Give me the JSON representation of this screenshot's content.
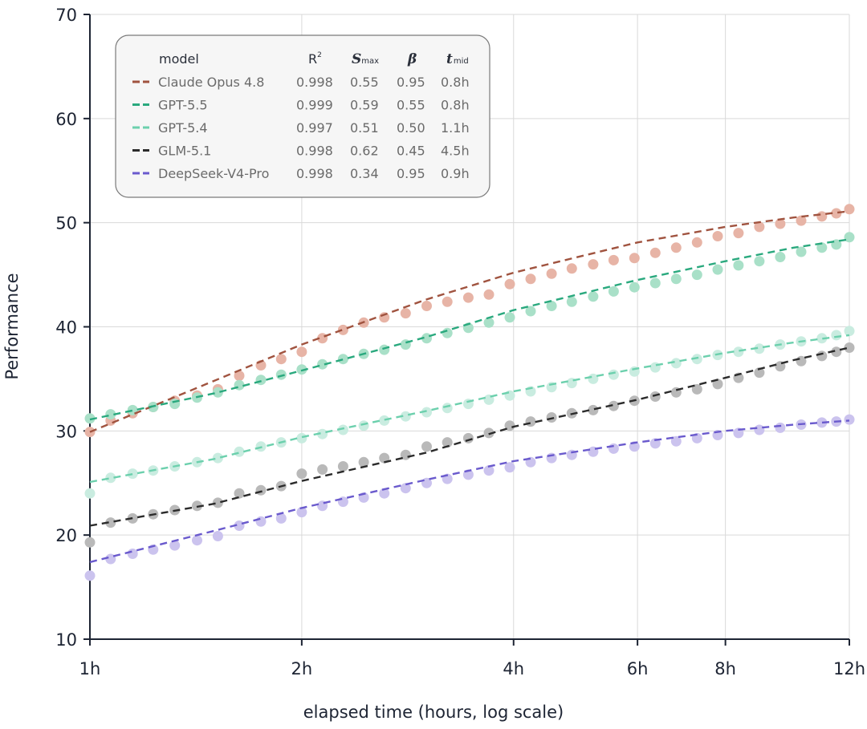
{
  "chart_data": {
    "type": "line",
    "xlabel": "elapsed time (hours, log scale)",
    "ylabel": "Performance",
    "x_scale": "log",
    "xlim": [
      1,
      12
    ],
    "ylim": [
      10,
      70
    ],
    "grid": true,
    "x_ticks": [
      {
        "value": 1,
        "label": "1h"
      },
      {
        "value": 2,
        "label": "2h"
      },
      {
        "value": 4,
        "label": "4h"
      },
      {
        "value": 6,
        "label": "6h"
      },
      {
        "value": 8,
        "label": "8h"
      },
      {
        "value": 12,
        "label": "12h"
      }
    ],
    "y_ticks": [
      10,
      20,
      30,
      40,
      50,
      60,
      70
    ],
    "legend": {
      "placement": "top-left",
      "headers": {
        "model": "model",
        "r2": "R",
        "r2_sup": "2",
        "smax": "S",
        "smax_sub": "max",
        "beta": "β",
        "tmid": "t",
        "tmid_sub": "mid"
      },
      "rows": [
        {
          "model": "Claude Opus 4.8",
          "r2": "0.998",
          "smax": "0.55",
          "beta": "0.95",
          "tmid": "0.8h"
        },
        {
          "model": "GPT-5.5",
          "r2": "0.999",
          "smax": "0.59",
          "beta": "0.55",
          "tmid": "0.8h"
        },
        {
          "model": "GPT-5.4",
          "r2": "0.997",
          "smax": "0.51",
          "beta": "0.50",
          "tmid": "1.1h"
        },
        {
          "model": "GLM-5.1",
          "r2": "0.998",
          "smax": "0.62",
          "beta": "0.45",
          "tmid": "4.5h"
        },
        {
          "model": "DeepSeek-V4-Pro",
          "r2": "0.998",
          "smax": "0.34",
          "beta": "0.95",
          "tmid": "0.9h"
        }
      ]
    },
    "series": [
      {
        "name": "Claude Opus 4.8",
        "line_color": "#a0533f",
        "dot_color": "#e7b4a6",
        "fit": [
          [
            1,
            29.9
          ],
          [
            1.25,
            32.6
          ],
          [
            1.5,
            34.8
          ],
          [
            2,
            38.3
          ],
          [
            3,
            42.6
          ],
          [
            4,
            45.2
          ],
          [
            6,
            48.1
          ],
          [
            8,
            49.6
          ],
          [
            10,
            50.5
          ],
          [
            12,
            51.1
          ]
        ],
        "points": [
          [
            1,
            29.9
          ],
          [
            1.07,
            31.0
          ],
          [
            1.15,
            31.7
          ],
          [
            1.23,
            32.3
          ],
          [
            1.32,
            32.9
          ],
          [
            1.42,
            33.4
          ],
          [
            1.52,
            34.0
          ],
          [
            1.63,
            35.3
          ],
          [
            1.75,
            36.3
          ],
          [
            1.87,
            36.9
          ],
          [
            2.0,
            37.6
          ],
          [
            2.14,
            38.9
          ],
          [
            2.29,
            39.7
          ],
          [
            2.45,
            40.4
          ],
          [
            2.62,
            40.9
          ],
          [
            2.81,
            41.3
          ],
          [
            3.01,
            42.0
          ],
          [
            3.22,
            42.4
          ],
          [
            3.45,
            42.8
          ],
          [
            3.69,
            43.1
          ],
          [
            3.95,
            44.1
          ],
          [
            4.23,
            44.6
          ],
          [
            4.53,
            45.1
          ],
          [
            4.84,
            45.6
          ],
          [
            5.19,
            46.0
          ],
          [
            5.55,
            46.4
          ],
          [
            5.94,
            46.6
          ],
          [
            6.36,
            47.1
          ],
          [
            6.81,
            47.6
          ],
          [
            7.29,
            48.1
          ],
          [
            7.8,
            48.7
          ],
          [
            8.35,
            49.0
          ],
          [
            8.94,
            49.6
          ],
          [
            9.57,
            49.9
          ],
          [
            10.25,
            50.2
          ],
          [
            10.97,
            50.6
          ],
          [
            11.5,
            50.9
          ],
          [
            12,
            51.3
          ]
        ]
      },
      {
        "name": "GPT-5.5",
        "line_color": "#2aa97e",
        "dot_color": "#a9e0c8",
        "fit": [
          [
            1,
            31.1
          ],
          [
            1.5,
            33.6
          ],
          [
            2,
            35.8
          ],
          [
            3,
            39.0
          ],
          [
            4,
            41.6
          ],
          [
            6,
            44.5
          ],
          [
            8,
            46.3
          ],
          [
            10,
            47.6
          ],
          [
            12,
            48.4
          ]
        ],
        "points": [
          [
            1,
            31.2
          ],
          [
            1.07,
            31.6
          ],
          [
            1.15,
            32.0
          ],
          [
            1.23,
            32.3
          ],
          [
            1.32,
            32.6
          ],
          [
            1.42,
            33.2
          ],
          [
            1.52,
            33.7
          ],
          [
            1.63,
            34.4
          ],
          [
            1.75,
            34.9
          ],
          [
            1.87,
            35.4
          ],
          [
            2.0,
            35.9
          ],
          [
            2.14,
            36.4
          ],
          [
            2.29,
            36.9
          ],
          [
            2.45,
            37.4
          ],
          [
            2.62,
            37.8
          ],
          [
            2.81,
            38.3
          ],
          [
            3.01,
            38.9
          ],
          [
            3.22,
            39.4
          ],
          [
            3.45,
            39.9
          ],
          [
            3.69,
            40.4
          ],
          [
            3.95,
            40.9
          ],
          [
            4.23,
            41.5
          ],
          [
            4.53,
            42.0
          ],
          [
            4.84,
            42.4
          ],
          [
            5.19,
            42.9
          ],
          [
            5.55,
            43.4
          ],
          [
            5.94,
            43.8
          ],
          [
            6.36,
            44.2
          ],
          [
            6.81,
            44.6
          ],
          [
            7.29,
            45.0
          ],
          [
            7.8,
            45.5
          ],
          [
            8.35,
            45.9
          ],
          [
            8.94,
            46.3
          ],
          [
            9.57,
            46.7
          ],
          [
            10.25,
            47.2
          ],
          [
            10.97,
            47.6
          ],
          [
            11.5,
            47.9
          ],
          [
            12,
            48.6
          ]
        ]
      },
      {
        "name": "GPT-5.4",
        "line_color": "#6cd0ad",
        "dot_color": "#c9ece0",
        "fit": [
          [
            1,
            25.1
          ],
          [
            1.5,
            27.3
          ],
          [
            2,
            29.4
          ],
          [
            3,
            31.9
          ],
          [
            4,
            33.8
          ],
          [
            6,
            36.0
          ],
          [
            8,
            37.5
          ],
          [
            10,
            38.5
          ],
          [
            12,
            39.2
          ]
        ],
        "points": [
          [
            1,
            24.0
          ],
          [
            1.07,
            25.5
          ],
          [
            1.15,
            25.9
          ],
          [
            1.23,
            26.2
          ],
          [
            1.32,
            26.6
          ],
          [
            1.42,
            27.0
          ],
          [
            1.52,
            27.4
          ],
          [
            1.63,
            28.0
          ],
          [
            1.75,
            28.5
          ],
          [
            1.87,
            28.9
          ],
          [
            2.0,
            29.3
          ],
          [
            2.14,
            29.7
          ],
          [
            2.29,
            30.1
          ],
          [
            2.45,
            30.5
          ],
          [
            2.62,
            31.0
          ],
          [
            2.81,
            31.4
          ],
          [
            3.01,
            31.8
          ],
          [
            3.22,
            32.2
          ],
          [
            3.45,
            32.6
          ],
          [
            3.69,
            33.0
          ],
          [
            3.95,
            33.4
          ],
          [
            4.23,
            33.8
          ],
          [
            4.53,
            34.2
          ],
          [
            4.84,
            34.6
          ],
          [
            5.19,
            35.0
          ],
          [
            5.55,
            35.4
          ],
          [
            5.94,
            35.7
          ],
          [
            6.36,
            36.1
          ],
          [
            6.81,
            36.5
          ],
          [
            7.29,
            36.9
          ],
          [
            7.8,
            37.3
          ],
          [
            8.35,
            37.6
          ],
          [
            8.94,
            37.9
          ],
          [
            9.57,
            38.3
          ],
          [
            10.25,
            38.6
          ],
          [
            10.97,
            38.9
          ],
          [
            11.5,
            39.2
          ],
          [
            12,
            39.6
          ]
        ]
      },
      {
        "name": "GLM-5.1",
        "line_color": "#2b2b2b",
        "dot_color": "#b9b9b9",
        "fit": [
          [
            1,
            20.9
          ],
          [
            1.5,
            23.0
          ],
          [
            2,
            25.2
          ],
          [
            3,
            27.9
          ],
          [
            4,
            30.4
          ],
          [
            6,
            33.0
          ],
          [
            8,
            35.1
          ],
          [
            10,
            36.8
          ],
          [
            12,
            38.0
          ]
        ],
        "points": [
          [
            1,
            19.3
          ],
          [
            1.07,
            21.2
          ],
          [
            1.15,
            21.6
          ],
          [
            1.23,
            22.0
          ],
          [
            1.32,
            22.4
          ],
          [
            1.42,
            22.8
          ],
          [
            1.52,
            23.1
          ],
          [
            1.63,
            24.0
          ],
          [
            1.75,
            24.3
          ],
          [
            1.87,
            24.7
          ],
          [
            2.0,
            25.9
          ],
          [
            2.14,
            26.3
          ],
          [
            2.29,
            26.6
          ],
          [
            2.45,
            27.0
          ],
          [
            2.62,
            27.4
          ],
          [
            2.81,
            27.7
          ],
          [
            3.01,
            28.5
          ],
          [
            3.22,
            28.9
          ],
          [
            3.45,
            29.3
          ],
          [
            3.69,
            29.8
          ],
          [
            3.95,
            30.5
          ],
          [
            4.23,
            30.9
          ],
          [
            4.53,
            31.3
          ],
          [
            4.84,
            31.7
          ],
          [
            5.19,
            32.0
          ],
          [
            5.55,
            32.4
          ],
          [
            5.94,
            32.9
          ],
          [
            6.36,
            33.3
          ],
          [
            6.81,
            33.7
          ],
          [
            7.29,
            34.0
          ],
          [
            7.8,
            34.5
          ],
          [
            8.35,
            35.1
          ],
          [
            8.94,
            35.6
          ],
          [
            9.57,
            36.2
          ],
          [
            10.25,
            36.7
          ],
          [
            10.97,
            37.2
          ],
          [
            11.5,
            37.6
          ],
          [
            12,
            38.0
          ]
        ]
      },
      {
        "name": "DeepSeek-V4-Pro",
        "line_color": "#6a5acd",
        "dot_color": "#cbc3ee",
        "fit": [
          [
            1,
            17.4
          ],
          [
            1.5,
            20.4
          ],
          [
            2,
            22.6
          ],
          [
            3,
            25.3
          ],
          [
            4,
            27.1
          ],
          [
            6,
            28.9
          ],
          [
            8,
            30.0
          ],
          [
            10,
            30.6
          ],
          [
            12,
            31.0
          ]
        ],
        "points": [
          [
            1,
            16.1
          ],
          [
            1.07,
            17.7
          ],
          [
            1.15,
            18.2
          ],
          [
            1.23,
            18.6
          ],
          [
            1.32,
            19.0
          ],
          [
            1.42,
            19.5
          ],
          [
            1.52,
            19.9
          ],
          [
            1.63,
            20.9
          ],
          [
            1.75,
            21.3
          ],
          [
            1.87,
            21.6
          ],
          [
            2.0,
            22.2
          ],
          [
            2.14,
            22.8
          ],
          [
            2.29,
            23.2
          ],
          [
            2.45,
            23.6
          ],
          [
            2.62,
            24.0
          ],
          [
            2.81,
            24.5
          ],
          [
            3.01,
            25.0
          ],
          [
            3.22,
            25.4
          ],
          [
            3.45,
            25.8
          ],
          [
            3.69,
            26.2
          ],
          [
            3.95,
            26.5
          ],
          [
            4.23,
            27.0
          ],
          [
            4.53,
            27.4
          ],
          [
            4.84,
            27.7
          ],
          [
            5.19,
            28.0
          ],
          [
            5.55,
            28.3
          ],
          [
            5.94,
            28.5
          ],
          [
            6.36,
            28.8
          ],
          [
            6.81,
            29.0
          ],
          [
            7.29,
            29.3
          ],
          [
            7.8,
            29.6
          ],
          [
            8.35,
            29.8
          ],
          [
            8.94,
            30.1
          ],
          [
            9.57,
            30.3
          ],
          [
            10.25,
            30.6
          ],
          [
            10.97,
            30.8
          ],
          [
            11.5,
            30.9
          ],
          [
            12,
            31.1
          ]
        ]
      }
    ]
  }
}
